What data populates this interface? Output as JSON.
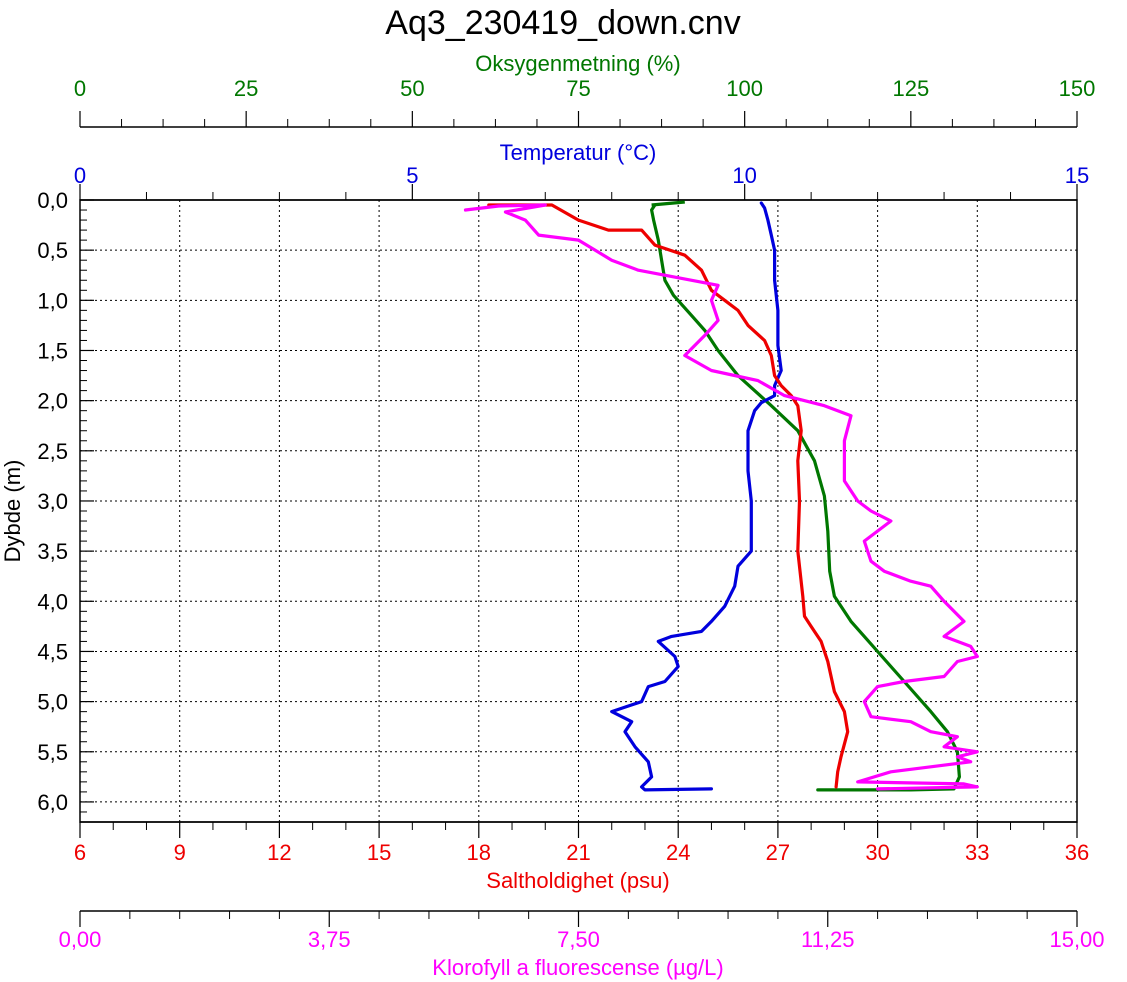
{
  "chart_data": {
    "type": "line",
    "title": "Aq3_230419_down.cnv",
    "ylabel": "Dybde (m)",
    "ylim": [
      0,
      6.2
    ],
    "y_inverted": true,
    "y_ticks": [
      "0,0",
      "0,5",
      "1,0",
      "1,5",
      "2,0",
      "2,5",
      "3,0",
      "3,5",
      "4,0",
      "4,5",
      "5,0",
      "5,5",
      "6,0"
    ],
    "grid": "dotted",
    "axes": {
      "oxygen": {
        "label": "Oksygenmetning (%)",
        "color": "#007700",
        "range": [
          0,
          150
        ],
        "ticks": [
          "0",
          "25",
          "50",
          "75",
          "100",
          "125",
          "150"
        ],
        "position": "top-outer"
      },
      "temperature": {
        "label": "Temperatur (°C)",
        "color": "#0000dd",
        "range": [
          0,
          15
        ],
        "ticks": [
          "0",
          "5",
          "10",
          "15"
        ],
        "position": "top-inner"
      },
      "salinity": {
        "label": "Saltholdighet (psu)",
        "color": "#ee0000",
        "range": [
          6,
          36
        ],
        "ticks": [
          "6",
          "9",
          "12",
          "15",
          "18",
          "21",
          "24",
          "27",
          "30",
          "33",
          "36"
        ],
        "position": "bottom-inner"
      },
      "chlorophyll": {
        "label": "Klorofyll a fluorescense (µg/L)",
        "color": "#ff00ff",
        "range": [
          0,
          15
        ],
        "ticks": [
          "0,00",
          "3,75",
          "7,50",
          "11,25",
          "15,00"
        ],
        "position": "bottom-outer"
      }
    },
    "series": [
      {
        "name": "Oksygenmetning (%)",
        "axis": "oxygen",
        "color": "#007700",
        "points": [
          [
            86.5,
            0.05
          ],
          [
            86,
            0.1
          ],
          [
            86.3,
            0.2
          ],
          [
            87,
            0.4
          ],
          [
            87.5,
            0.6
          ],
          [
            88,
            0.8
          ],
          [
            89.3,
            0.95
          ],
          [
            92,
            1.15
          ],
          [
            94,
            1.3
          ],
          [
            96,
            1.5
          ],
          [
            99,
            1.75
          ],
          [
            104,
            2.05
          ],
          [
            108,
            2.3
          ],
          [
            110.5,
            2.6
          ],
          [
            112,
            2.95
          ],
          [
            112.5,
            3.3
          ],
          [
            112.8,
            3.7
          ],
          [
            113.5,
            3.95
          ],
          [
            116,
            4.2
          ],
          [
            120,
            4.5
          ],
          [
            124,
            4.8
          ],
          [
            128,
            5.1
          ],
          [
            130.5,
            5.3
          ],
          [
            132,
            5.5
          ],
          [
            132.3,
            5.75
          ],
          [
            131.5,
            5.87
          ],
          [
            125,
            5.88
          ],
          [
            111,
            5.88
          ]
        ],
        "noisy_top": [
          [
            86,
            0.05
          ],
          [
            91,
            0.02
          ]
        ]
      },
      {
        "name": "Temperatur (°C)",
        "axis": "temperature",
        "color": "#0000dd",
        "points": [
          [
            10.25,
            0.03
          ],
          [
            10.3,
            0.08
          ],
          [
            10.35,
            0.2
          ],
          [
            10.4,
            0.35
          ],
          [
            10.45,
            0.5
          ],
          [
            10.45,
            0.8
          ],
          [
            10.5,
            1.1
          ],
          [
            10.5,
            1.45
          ],
          [
            10.55,
            1.7
          ],
          [
            10.45,
            1.85
          ],
          [
            10.45,
            1.95
          ],
          [
            10.25,
            2.02
          ],
          [
            10.15,
            2.1
          ],
          [
            10.05,
            2.3
          ],
          [
            10.05,
            2.7
          ],
          [
            10.1,
            3.0
          ],
          [
            10.1,
            3.3
          ],
          [
            10.1,
            3.5
          ],
          [
            9.9,
            3.65
          ],
          [
            9.85,
            3.85
          ],
          [
            9.7,
            4.05
          ],
          [
            9.5,
            4.2
          ],
          [
            9.35,
            4.3
          ],
          [
            8.9,
            4.35
          ],
          [
            8.7,
            4.4
          ],
          [
            8.95,
            4.55
          ],
          [
            9.0,
            4.65
          ],
          [
            8.8,
            4.8
          ],
          [
            8.55,
            4.85
          ],
          [
            8.45,
            5.0
          ],
          [
            8.0,
            5.1
          ],
          [
            8.3,
            5.2
          ],
          [
            8.2,
            5.3
          ],
          [
            8.35,
            5.45
          ],
          [
            8.55,
            5.6
          ],
          [
            8.6,
            5.75
          ],
          [
            8.45,
            5.85
          ],
          [
            8.5,
            5.88
          ],
          [
            9.5,
            5.87
          ]
        ]
      },
      {
        "name": "Saltholdighet (psu)",
        "axis": "salinity",
        "color": "#ee0000",
        "points": [
          [
            18.3,
            0.05
          ],
          [
            20.2,
            0.05
          ],
          [
            21.0,
            0.2
          ],
          [
            21.9,
            0.3
          ],
          [
            22.9,
            0.3
          ],
          [
            23.3,
            0.45
          ],
          [
            24.2,
            0.55
          ],
          [
            24.7,
            0.7
          ],
          [
            25.0,
            0.9
          ],
          [
            25.4,
            1.0
          ],
          [
            25.8,
            1.1
          ],
          [
            26.1,
            1.25
          ],
          [
            26.6,
            1.4
          ],
          [
            26.8,
            1.55
          ],
          [
            26.9,
            1.75
          ],
          [
            27.1,
            1.85
          ],
          [
            27.4,
            1.95
          ],
          [
            27.6,
            2.05
          ],
          [
            27.7,
            2.3
          ],
          [
            27.6,
            2.6
          ],
          [
            27.65,
            3.0
          ],
          [
            27.6,
            3.5
          ],
          [
            27.75,
            3.95
          ],
          [
            27.8,
            4.15
          ],
          [
            28.0,
            4.25
          ],
          [
            28.3,
            4.4
          ],
          [
            28.5,
            4.6
          ],
          [
            28.7,
            4.9
          ],
          [
            29.0,
            5.1
          ],
          [
            29.1,
            5.3
          ],
          [
            28.9,
            5.55
          ],
          [
            28.8,
            5.7
          ],
          [
            28.75,
            5.85
          ]
        ]
      },
      {
        "name": "Klorofyll a fluorescense (µg/L)",
        "axis": "chlorophyll",
        "color": "#ff00ff",
        "points": [
          [
            5.8,
            0.1
          ],
          [
            6.3,
            0.06
          ],
          [
            7.0,
            0.05
          ],
          [
            6.4,
            0.12
          ],
          [
            6.7,
            0.2
          ],
          [
            6.9,
            0.35
          ],
          [
            7.5,
            0.4
          ],
          [
            8.0,
            0.6
          ],
          [
            8.4,
            0.7
          ],
          [
            9.6,
            0.85
          ],
          [
            9.5,
            1.0
          ],
          [
            9.6,
            1.2
          ],
          [
            9.4,
            1.35
          ],
          [
            9.1,
            1.55
          ],
          [
            9.5,
            1.7
          ],
          [
            10.2,
            1.8
          ],
          [
            10.6,
            1.95
          ],
          [
            11.2,
            2.05
          ],
          [
            11.6,
            2.15
          ],
          [
            11.5,
            2.4
          ],
          [
            11.5,
            2.8
          ],
          [
            11.7,
            3.0
          ],
          [
            11.9,
            3.1
          ],
          [
            12.2,
            3.2
          ],
          [
            11.8,
            3.4
          ],
          [
            11.9,
            3.6
          ],
          [
            12.1,
            3.7
          ],
          [
            12.5,
            3.8
          ],
          [
            12.8,
            3.85
          ],
          [
            13.0,
            4.0
          ],
          [
            13.3,
            4.2
          ],
          [
            13.0,
            4.35
          ],
          [
            13.4,
            4.45
          ],
          [
            13.5,
            4.55
          ],
          [
            13.2,
            4.6
          ],
          [
            13.0,
            4.75
          ],
          [
            12.4,
            4.8
          ],
          [
            12.0,
            4.85
          ],
          [
            11.8,
            5.0
          ],
          [
            11.9,
            5.15
          ],
          [
            12.5,
            5.2
          ],
          [
            12.8,
            5.3
          ],
          [
            13.2,
            5.35
          ],
          [
            13.0,
            5.45
          ],
          [
            13.5,
            5.5
          ],
          [
            13.2,
            5.55
          ],
          [
            13.4,
            5.6
          ],
          [
            12.8,
            5.65
          ],
          [
            12.2,
            5.7
          ],
          [
            11.7,
            5.8
          ],
          [
            13.3,
            5.82
          ],
          [
            13.5,
            5.85
          ],
          [
            12.0,
            5.87
          ]
        ]
      }
    ]
  }
}
